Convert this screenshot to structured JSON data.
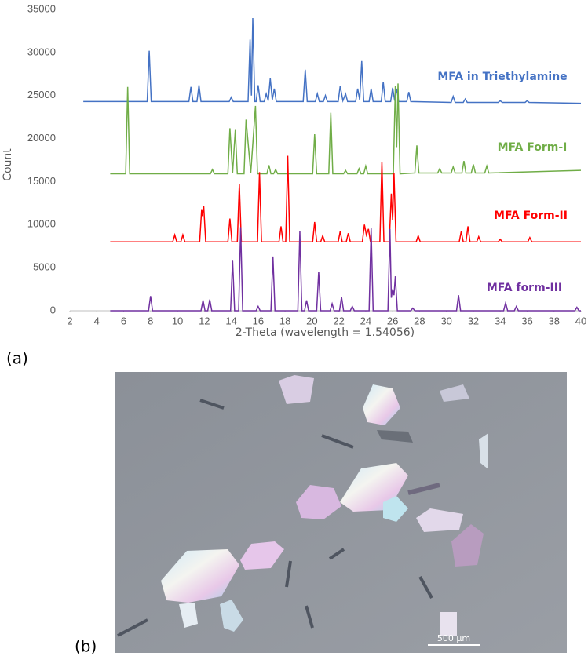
{
  "chart_data": {
    "type": "line",
    "x_label": "2-Theta (wavelength = 1.54056)",
    "y_label": "Count",
    "xlim": [
      2,
      40
    ],
    "xticks": [
      2,
      4,
      6,
      8,
      10,
      12,
      14,
      16,
      18,
      20,
      22,
      24,
      26,
      28,
      30,
      32,
      34,
      36,
      38,
      40
    ],
    "ylim": [
      0,
      35000
    ],
    "yticks": [
      0,
      5000,
      10000,
      15000,
      20000,
      25000,
      30000,
      35000
    ],
    "grid": false,
    "series": [
      {
        "name": "MFA in Triethylamine",
        "color": "#4472c4",
        "x": [
          3,
          7.75,
          7.9,
          8.05,
          10.85,
          11.0,
          11.15,
          11.45,
          11.6,
          11.75,
          13.85,
          14.0,
          14.15,
          15.25,
          15.4,
          15.5,
          15.6,
          15.75,
          15.85,
          16.0,
          16.15,
          16.45,
          16.6,
          16.75,
          16.9,
          17.05,
          17.2,
          17.35,
          19.35,
          19.5,
          19.65,
          20.25,
          20.4,
          20.55,
          20.85,
          21.0,
          21.15,
          21.95,
          22.1,
          22.3,
          22.5,
          22.65,
          23.25,
          23.4,
          23.55,
          23.7,
          23.85,
          24.25,
          24.4,
          24.55,
          25.15,
          25.3,
          25.45,
          25.85,
          26.0,
          26.15,
          26.3,
          26.45,
          27.05,
          27.2,
          27.35,
          30.35,
          30.5,
          30.65,
          31.25,
          31.4,
          31.55,
          33.85,
          34.0,
          34.15,
          35.85,
          36.0,
          36.15,
          40
        ],
        "values": [
          24300,
          24300,
          30200,
          24300,
          24300,
          26000,
          24300,
          24300,
          26200,
          24300,
          24300,
          24800,
          24300,
          24300,
          31500,
          25000,
          34000,
          24300,
          24300,
          26200,
          24300,
          24300,
          25200,
          24400,
          27000,
          24500,
          25800,
          24300,
          24300,
          28000,
          24300,
          24300,
          25200,
          24300,
          24300,
          25000,
          24300,
          24300,
          26100,
          24400,
          25200,
          24300,
          24300,
          25800,
          24500,
          29000,
          24300,
          24300,
          25800,
          24300,
          24300,
          26600,
          24300,
          24300,
          25900,
          24400,
          25800,
          24300,
          24300,
          25400,
          24300,
          24200,
          24900,
          24200,
          24200,
          24600,
          24200,
          24200,
          24400,
          24200,
          24200,
          24400,
          24200,
          24100
        ]
      },
      {
        "name": "MFA Form-I",
        "color": "#70ad47",
        "x": [
          5,
          6.15,
          6.3,
          6.45,
          12.45,
          12.6,
          12.75,
          13.75,
          13.9,
          14.1,
          14.3,
          14.45,
          14.95,
          15.1,
          15.45,
          15.8,
          15.95,
          16.65,
          16.8,
          16.95,
          17.15,
          17.3,
          17.45,
          20.05,
          20.2,
          20.35,
          21.25,
          21.4,
          21.55,
          22.35,
          22.5,
          22.65,
          23.35,
          23.5,
          23.65,
          23.85,
          24.0,
          24.15,
          26.05,
          26.2,
          26.3,
          26.4,
          26.55,
          27.65,
          27.8,
          27.95,
          29.35,
          29.5,
          29.65,
          30.35,
          30.5,
          30.65,
          31.15,
          31.3,
          31.45,
          31.85,
          32.0,
          32.15,
          32.85,
          33.0,
          33.15,
          40
        ],
        "values": [
          15900,
          15900,
          26000,
          15900,
          15900,
          16400,
          15900,
          15900,
          21200,
          16000,
          21000,
          15900,
          15900,
          22200,
          16000,
          23800,
          15900,
          15900,
          16900,
          15900,
          15900,
          16400,
          15900,
          15900,
          20500,
          15900,
          15900,
          23000,
          15900,
          15900,
          16300,
          15900,
          15900,
          16500,
          15900,
          15900,
          16800,
          15900,
          15900,
          26100,
          19000,
          26400,
          15900,
          16000,
          19200,
          16000,
          16000,
          16500,
          16000,
          16000,
          16700,
          16000,
          16000,
          17400,
          16000,
          16000,
          17000,
          16000,
          16000,
          16800,
          16000,
          16300
        ]
      },
      {
        "name": "MFA Form-II",
        "color": "#ff0000",
        "x": [
          5,
          9.65,
          9.8,
          9.95,
          10.25,
          10.4,
          10.55,
          11.65,
          11.8,
          11.85,
          11.95,
          12.1,
          13.75,
          13.9,
          14.05,
          14.45,
          14.6,
          14.75,
          15.95,
          16.1,
          16.25,
          17.55,
          17.7,
          17.85,
          18.05,
          18.2,
          18.35,
          20.05,
          20.2,
          20.35,
          20.65,
          20.8,
          20.95,
          21.95,
          22.1,
          22.25,
          22.55,
          22.7,
          22.85,
          23.75,
          23.9,
          24.05,
          24.2,
          24.35,
          25.05,
          25.2,
          25.35,
          25.75,
          25.9,
          26.0,
          26.1,
          26.25,
          27.75,
          27.9,
          28.05,
          30.95,
          31.1,
          31.25,
          31.45,
          31.6,
          31.75,
          32.25,
          32.4,
          32.55,
          33.85,
          34.0,
          34.15,
          36.05,
          36.2,
          36.35,
          40
        ],
        "values": [
          8000,
          8000,
          8800,
          8000,
          8000,
          8800,
          8000,
          8000,
          11800,
          11000,
          12200,
          8000,
          8000,
          10700,
          8000,
          8000,
          14700,
          8000,
          8000,
          16100,
          8000,
          8000,
          9800,
          8000,
          8000,
          18000,
          8000,
          8000,
          10300,
          8000,
          8000,
          8700,
          8000,
          8000,
          9200,
          8000,
          8000,
          9000,
          8000,
          8000,
          10000,
          8800,
          9500,
          8000,
          8000,
          17300,
          8000,
          8000,
          13600,
          10500,
          16000,
          8000,
          8000,
          8700,
          8000,
          8000,
          9200,
          8000,
          8000,
          9800,
          8000,
          8000,
          8600,
          8000,
          8000,
          8300,
          8000,
          8000,
          8500,
          8000,
          8000
        ]
      },
      {
        "name": "MFA form-III",
        "color": "#7030a0",
        "x": [
          5,
          7.85,
          8.0,
          8.15,
          11.75,
          11.9,
          12.05,
          12.25,
          12.4,
          12.55,
          13.95,
          14.1,
          14.25,
          14.55,
          14.7,
          14.85,
          15.85,
          16.0,
          16.15,
          16.95,
          17.1,
          17.25,
          18.95,
          19.1,
          19.25,
          19.45,
          19.6,
          19.75,
          20.35,
          20.5,
          20.65,
          21.35,
          21.5,
          21.65,
          22.05,
          22.2,
          22.35,
          22.85,
          23.0,
          23.15,
          24.25,
          24.4,
          24.55,
          25.65,
          25.8,
          25.9,
          26.0,
          26.1,
          26.2,
          26.35,
          27.35,
          27.5,
          27.65,
          30.75,
          30.9,
          31.05,
          34.25,
          34.4,
          34.55,
          35.05,
          35.2,
          35.35,
          39.55,
          39.7,
          39.85,
          40
        ],
        "values": [
          0,
          0,
          1700,
          0,
          0,
          1200,
          0,
          0,
          1300,
          0,
          0,
          5900,
          0,
          0,
          9700,
          0,
          0,
          500,
          0,
          0,
          6300,
          0,
          0,
          9200,
          0,
          0,
          1200,
          0,
          0,
          4500,
          0,
          0,
          800,
          0,
          0,
          1600,
          0,
          0,
          500,
          0,
          0,
          9600,
          0,
          0,
          9500,
          1500,
          2500,
          1800,
          4000,
          0,
          0,
          300,
          0,
          0,
          1800,
          0,
          0,
          900,
          0,
          0,
          500,
          0,
          0,
          400,
          0,
          0
        ]
      }
    ]
  },
  "figure": {
    "panel_a_label": "(a)",
    "panel_b_label": "(b)",
    "scale_bar": "500 µm"
  }
}
